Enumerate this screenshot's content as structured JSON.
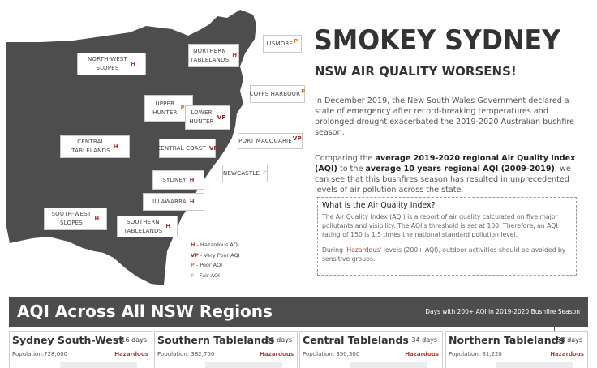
{
  "map": {
    "regions": [
      {
        "name": "NORTH-WEST\nSLOPES",
        "code": "H"
      },
      {
        "name": "NORTHERN\nTABLELANDS",
        "code": "H"
      },
      {
        "name": "LISMORE",
        "code": "P"
      },
      {
        "name": "COFFS HARBOUR",
        "code": "P"
      },
      {
        "name": "UPPER\nHUNTER",
        "code": "P"
      },
      {
        "name": "LOWER\nHUNTER",
        "code": "VP"
      },
      {
        "name": "CENTRAL\nTABLELANDS",
        "code": "H"
      },
      {
        "name": "CENTRAL COAST",
        "code": "VP"
      },
      {
        "name": "PORT MACQUARIE",
        "code": "VP"
      },
      {
        "name": "NEWCASTLE",
        "code": "F"
      },
      {
        "name": "SYDNEY",
        "code": "H"
      },
      {
        "name": "ILLAWARRA",
        "code": "H"
      },
      {
        "name": "SOUTH-WEST\nSLOPES",
        "code": "H"
      },
      {
        "name": "SOUTHERN\nTABLELANDS",
        "code": "H"
      }
    ],
    "code_colors": {
      "H": "#b03a2e",
      "VP": "#8e1f1f",
      "P": "#e07b1f",
      "F": "#f2c12e"
    },
    "land_color": "#4d4d4d"
  },
  "legend": [
    {
      "code": "H",
      "text": " - Hazardous AQI"
    },
    {
      "code": "VP",
      "text": " - Very Poor AQI"
    },
    {
      "code": "P",
      "text": " - Poor AQI"
    },
    {
      "code": "F",
      "text": " - Fair AQI"
    }
  ],
  "header": {
    "title": "SMOKEY SYDNEY",
    "subtitle": "NSW AIR QUALITY WORSENS!"
  },
  "intro": {
    "p1": "In December 2019, the New South Wales Government declared a state of emergency after record-breaking temperatures and prolonged drought exacerbated the 2019-2020 Australian bushfire season.",
    "p2_a": "Comparing the ",
    "p2_b": "average 2019-2020 regional Air Quality Index (AQI)",
    "p2_c": " to the ",
    "p2_d": "average 10 years regional AQI (2009-2019)",
    "p2_e": ", we can see that this bushfires season has resulted in unprecedented levels of air pollution across the state."
  },
  "infobox": {
    "heading": "What is the Air Quality Index?",
    "body": "The Air Quality Index (AQI) is a report of air quality calculated on five major pollutants and visibility. The AQI's threshold is set at 100. Therefore, an AQI rating of 150 is 1.5 times the national standard pollution level.",
    "note_a": "During ",
    "note_b": "'Hazardous'",
    "note_c": " levels (200+ AQI), outdoor activities should be avoided by sensitive groups."
  },
  "banner": {
    "title": "AQI Across All NSW Regions",
    "right": "Days with 200+ AQI in 2019-2020 Bushfire Season"
  },
  "cards": [
    {
      "name": "Sydney South-West",
      "days": "16 days",
      "population": "Population:728,000",
      "status": "Hazardous"
    },
    {
      "name": "Southern Tablelands",
      "days": "25 days",
      "population": "Population: 382,700",
      "status": "Hazardous"
    },
    {
      "name": "Central Tablelands",
      "days": "34 days",
      "population": "Population: 350,300",
      "status": "Hazardous"
    },
    {
      "name": "Northern Tablelands",
      "days": "53 days",
      "population": "Population: 81,220",
      "status": "Hazardous"
    }
  ]
}
